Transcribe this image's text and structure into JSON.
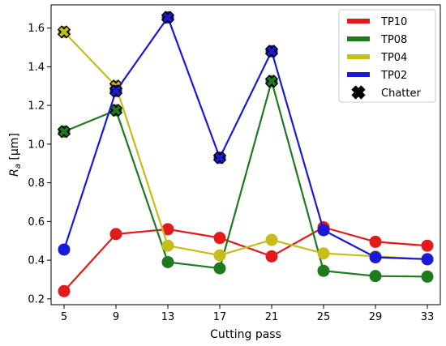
{
  "chart_data": {
    "type": "line",
    "xlabel": "Cutting pass",
    "ylabel_main": "R",
    "ylabel_sub": "a",
    "ylabel_unit": " [μm]",
    "x": [
      5,
      9,
      13,
      17,
      21,
      25,
      29,
      33
    ],
    "xticks": [
      "5",
      "9",
      "13",
      "17",
      "21",
      "25",
      "29",
      "33"
    ],
    "yticks": [
      "0.2",
      "0.4",
      "0.6",
      "0.8",
      "1.0",
      "1.2",
      "1.4",
      "1.6"
    ],
    "xlim": [
      4,
      34
    ],
    "ylim": [
      0.17,
      1.72
    ],
    "grid": false,
    "legend_position": "top-right",
    "series": [
      {
        "name": "TP10",
        "color": "#e31a1c",
        "values": [
          0.24,
          0.535,
          0.56,
          0.515,
          0.42,
          0.57,
          0.495,
          0.475
        ],
        "chatter": [
          false,
          false,
          false,
          false,
          false,
          false,
          false,
          false
        ]
      },
      {
        "name": "TP08",
        "color": "#1f7a1f",
        "values": [
          1.065,
          1.175,
          0.39,
          0.358,
          1.325,
          0.345,
          0.318,
          0.315
        ],
        "chatter": [
          true,
          true,
          false,
          false,
          true,
          false,
          false,
          false
        ]
      },
      {
        "name": "TP04",
        "color": "#c4bd1a",
        "values": [
          1.58,
          1.3,
          0.475,
          0.425,
          0.505,
          0.435,
          0.42,
          0.405
        ],
        "chatter": [
          true,
          true,
          false,
          false,
          false,
          false,
          false,
          false
        ]
      },
      {
        "name": "TP02",
        "color": "#1a1ad6",
        "values": [
          0.455,
          1.275,
          1.655,
          0.93,
          1.48,
          0.555,
          0.415,
          0.405
        ],
        "chatter": [
          false,
          true,
          true,
          true,
          true,
          false,
          false,
          false
        ]
      }
    ],
    "chatter_label": "Chatter",
    "chatter_color": "#000000"
  }
}
